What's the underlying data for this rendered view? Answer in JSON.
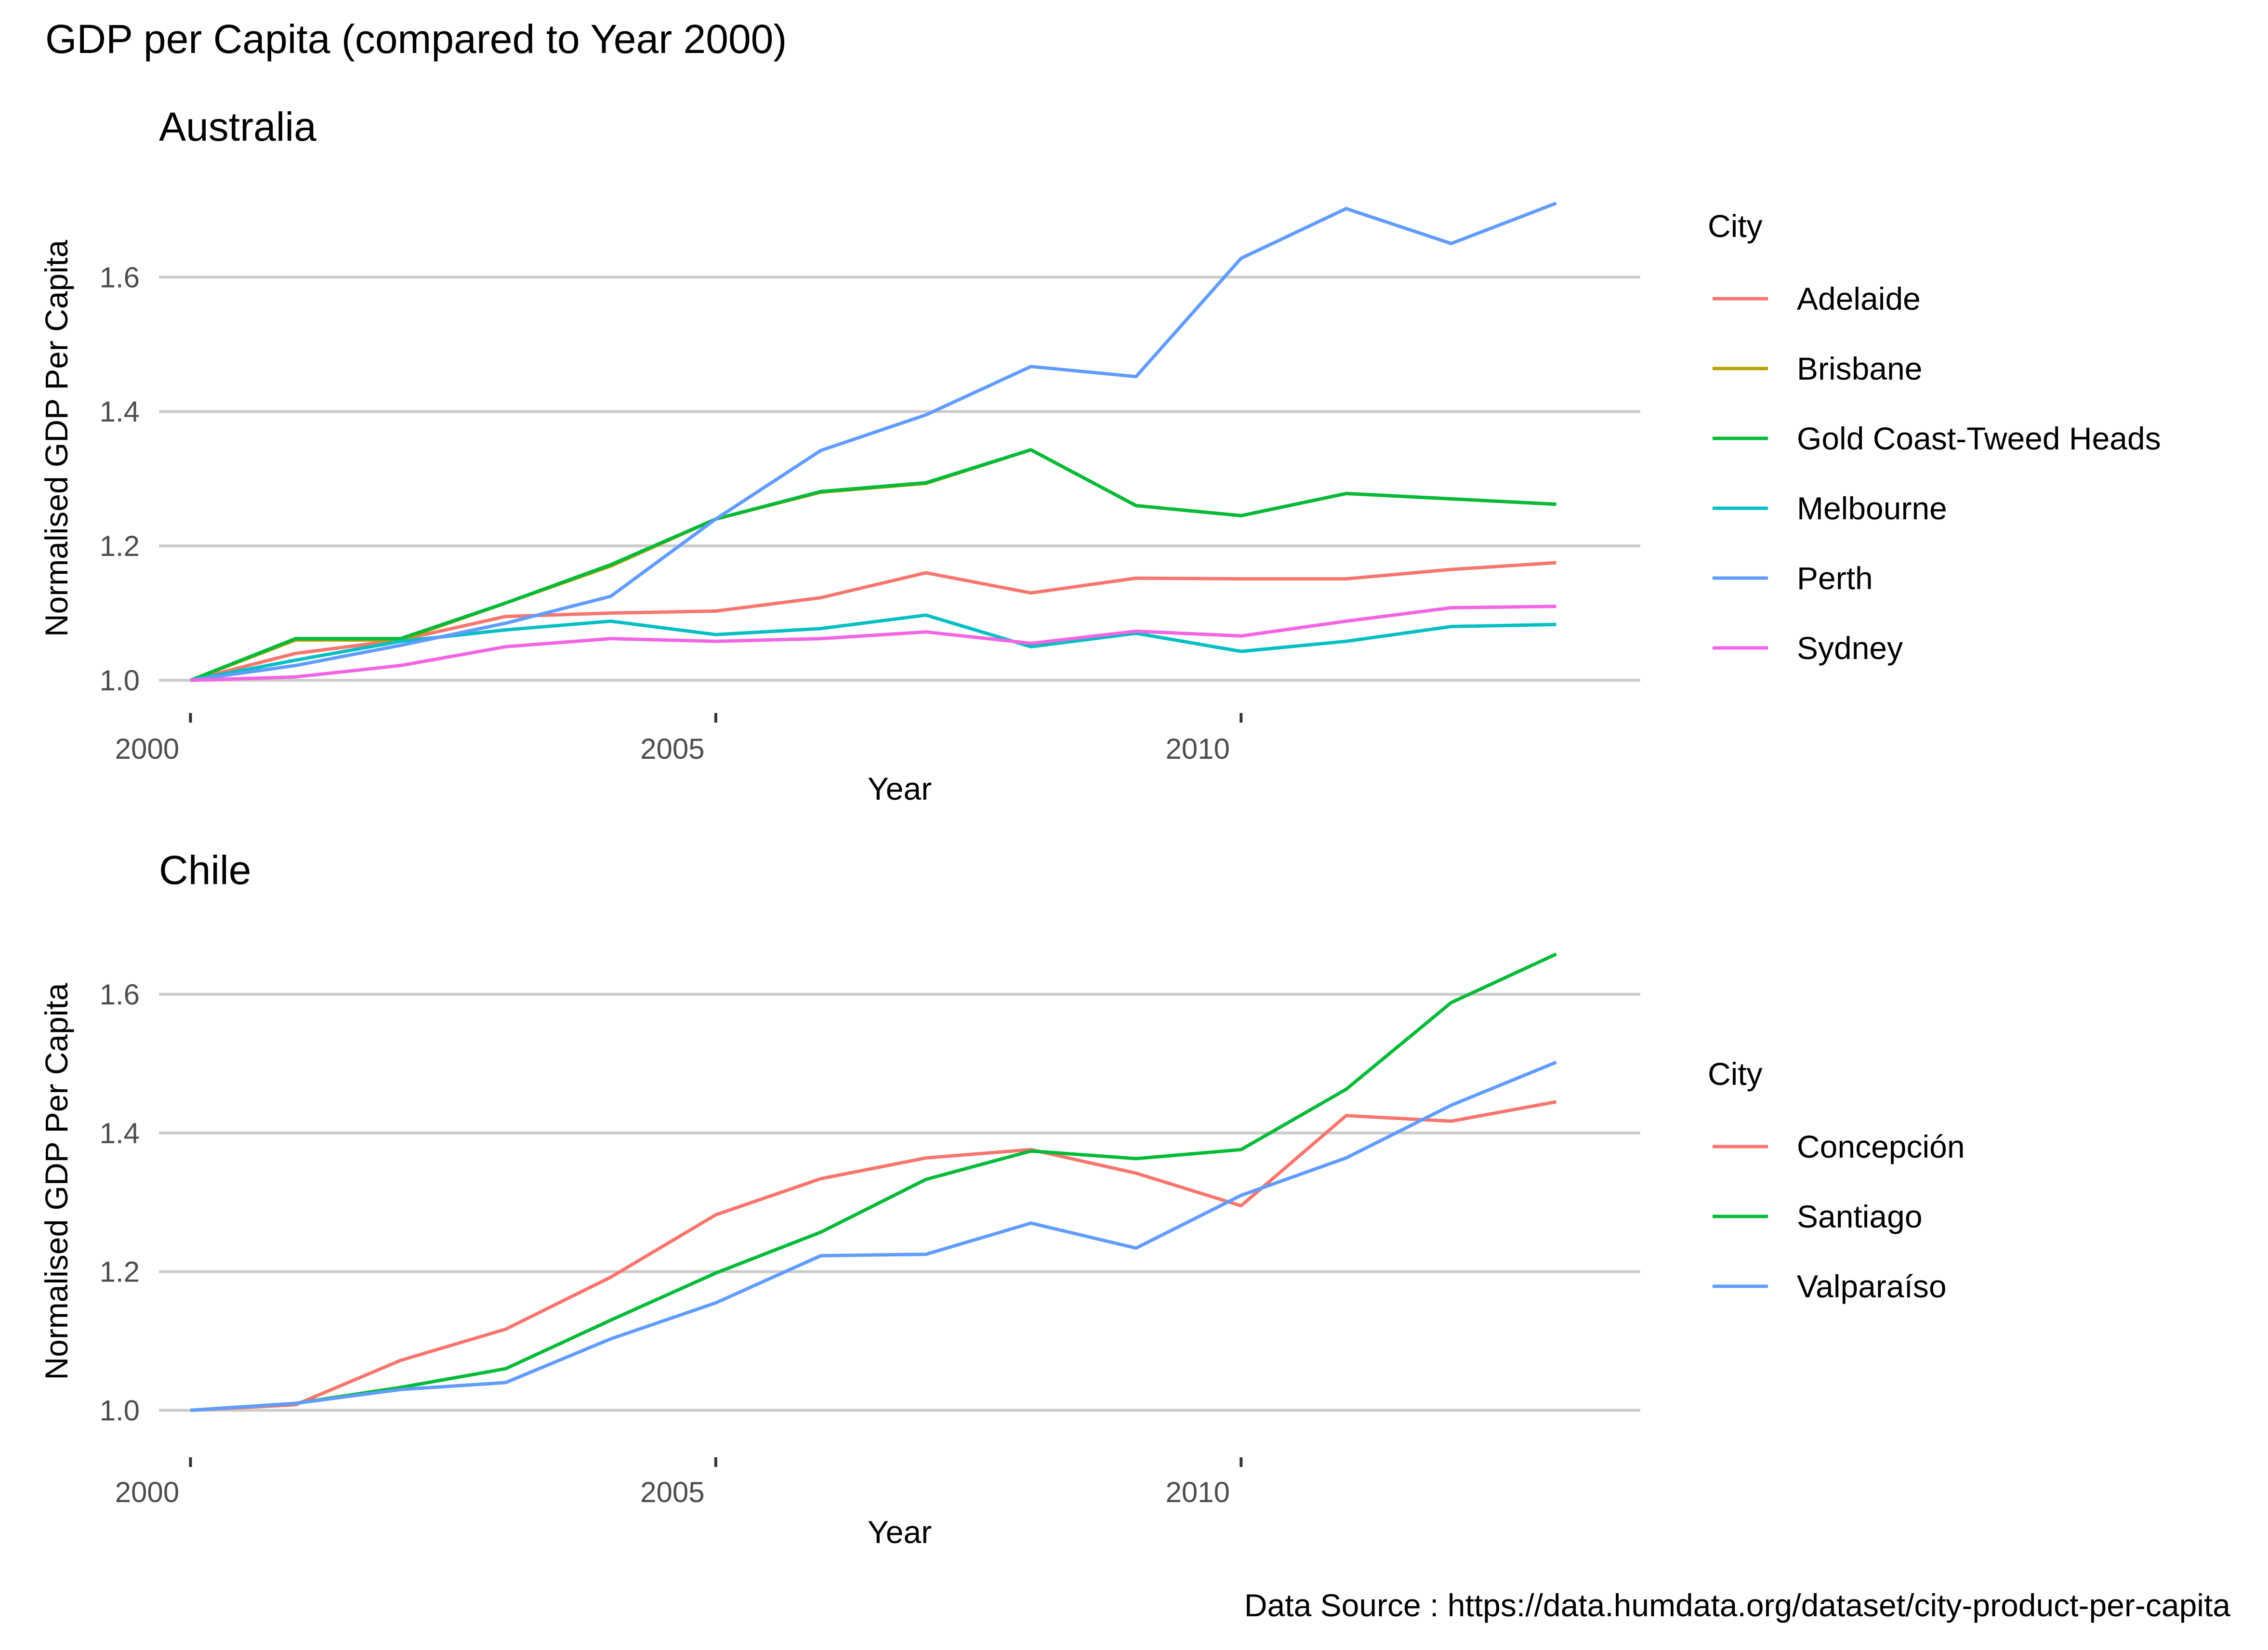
{
  "title": "GDP per Capita (compared to Year 2000)",
  "caption": "Data Source : https://data.humdata.org/dataset/city-product-per-capita",
  "chart_data": [
    {
      "type": "line",
      "title": "Australia",
      "xlabel": "Year",
      "ylabel": "Normalised GDP Per Capita",
      "xlim": [
        1999.7,
        2013.8
      ],
      "ylim": [
        0.98,
        1.74
      ],
      "xticks": [
        2000,
        2005,
        2010
      ],
      "xtick_labels": [
        "2000",
        "2005",
        "2010"
      ],
      "yticks": [
        1.0,
        1.2,
        1.4,
        1.6
      ],
      "ytick_labels": [
        "1.0",
        "1.2",
        "1.4",
        "1.6"
      ],
      "grid": "horizontal major",
      "legend": {
        "title": "City",
        "position": "right"
      },
      "x": [
        2000,
        2001,
        2002,
        2003,
        2004,
        2005,
        2006,
        2007,
        2008,
        2009,
        2010,
        2011,
        2012,
        2013
      ],
      "series": [
        {
          "name": "Adelaide",
          "color": "#F8766D",
          "values": [
            1.0,
            1.04,
            1.06,
            1.095,
            1.1,
            1.103,
            1.123,
            1.16,
            1.13,
            1.152,
            1.151,
            1.151,
            1.165,
            1.175
          ]
        },
        {
          "name": "Brisbane",
          "color": "#B79F00",
          "values": [
            1.0,
            1.06,
            1.06,
            1.115,
            1.17,
            1.24,
            1.28,
            1.293,
            1.343,
            1.26,
            1.245,
            1.278,
            1.27,
            1.262
          ]
        },
        {
          "name": "Gold Coast-Tweed Heads",
          "color": "#00BA38",
          "values": [
            1.0,
            1.062,
            1.062,
            1.115,
            1.172,
            1.24,
            1.281,
            1.294,
            1.343,
            1.26,
            1.245,
            1.278,
            1.27,
            1.262
          ]
        },
        {
          "name": "Melbourne",
          "color": "#00BFC4",
          "values": [
            1.0,
            1.03,
            1.058,
            1.075,
            1.088,
            1.068,
            1.077,
            1.097,
            1.05,
            1.07,
            1.043,
            1.058,
            1.08,
            1.083
          ]
        },
        {
          "name": "Perth",
          "color": "#619CFF",
          "values": [
            1.0,
            1.022,
            1.052,
            1.085,
            1.125,
            1.24,
            1.342,
            1.395,
            1.467,
            1.452,
            1.628,
            1.702,
            1.65,
            1.71
          ]
        },
        {
          "name": "Sydney",
          "color": "#F564E3",
          "values": [
            1.0,
            1.005,
            1.022,
            1.05,
            1.062,
            1.058,
            1.062,
            1.072,
            1.055,
            1.073,
            1.066,
            1.088,
            1.108,
            1.11
          ]
        }
      ]
    },
    {
      "type": "line",
      "title": "Chile",
      "xlabel": "Year",
      "ylabel": "Normalised GDP Per Capita",
      "xlim": [
        1999.7,
        2013.8
      ],
      "ylim": [
        0.96,
        1.7
      ],
      "xticks": [
        2000,
        2005,
        2010
      ],
      "xtick_labels": [
        "2000",
        "2005",
        "2010"
      ],
      "yticks": [
        1.0,
        1.2,
        1.4,
        1.6
      ],
      "ytick_labels": [
        "1.0",
        "1.2",
        "1.4",
        "1.6"
      ],
      "grid": "horizontal major",
      "legend": {
        "title": "City",
        "position": "right"
      },
      "x": [
        2000,
        2001,
        2002,
        2003,
        2004,
        2005,
        2006,
        2007,
        2008,
        2009,
        2010,
        2011,
        2012,
        2013
      ],
      "series": [
        {
          "name": "Concepción",
          "color": "#F8766D",
          "values": [
            1.0,
            1.008,
            1.072,
            1.117,
            1.192,
            1.282,
            1.334,
            1.364,
            1.376,
            1.342,
            1.295,
            1.425,
            1.417,
            1.445
          ]
        },
        {
          "name": "Santiago",
          "color": "#00BA38",
          "values": [
            1.0,
            1.01,
            1.033,
            1.06,
            1.13,
            1.198,
            1.257,
            1.333,
            1.374,
            1.363,
            1.376,
            1.463,
            1.588,
            1.658
          ]
        },
        {
          "name": "Valparaíso",
          "color": "#619CFF",
          "values": [
            1.0,
            1.01,
            1.03,
            1.04,
            1.103,
            1.155,
            1.223,
            1.225,
            1.27,
            1.234,
            1.31,
            1.364,
            1.44,
            1.502
          ]
        }
      ]
    }
  ]
}
